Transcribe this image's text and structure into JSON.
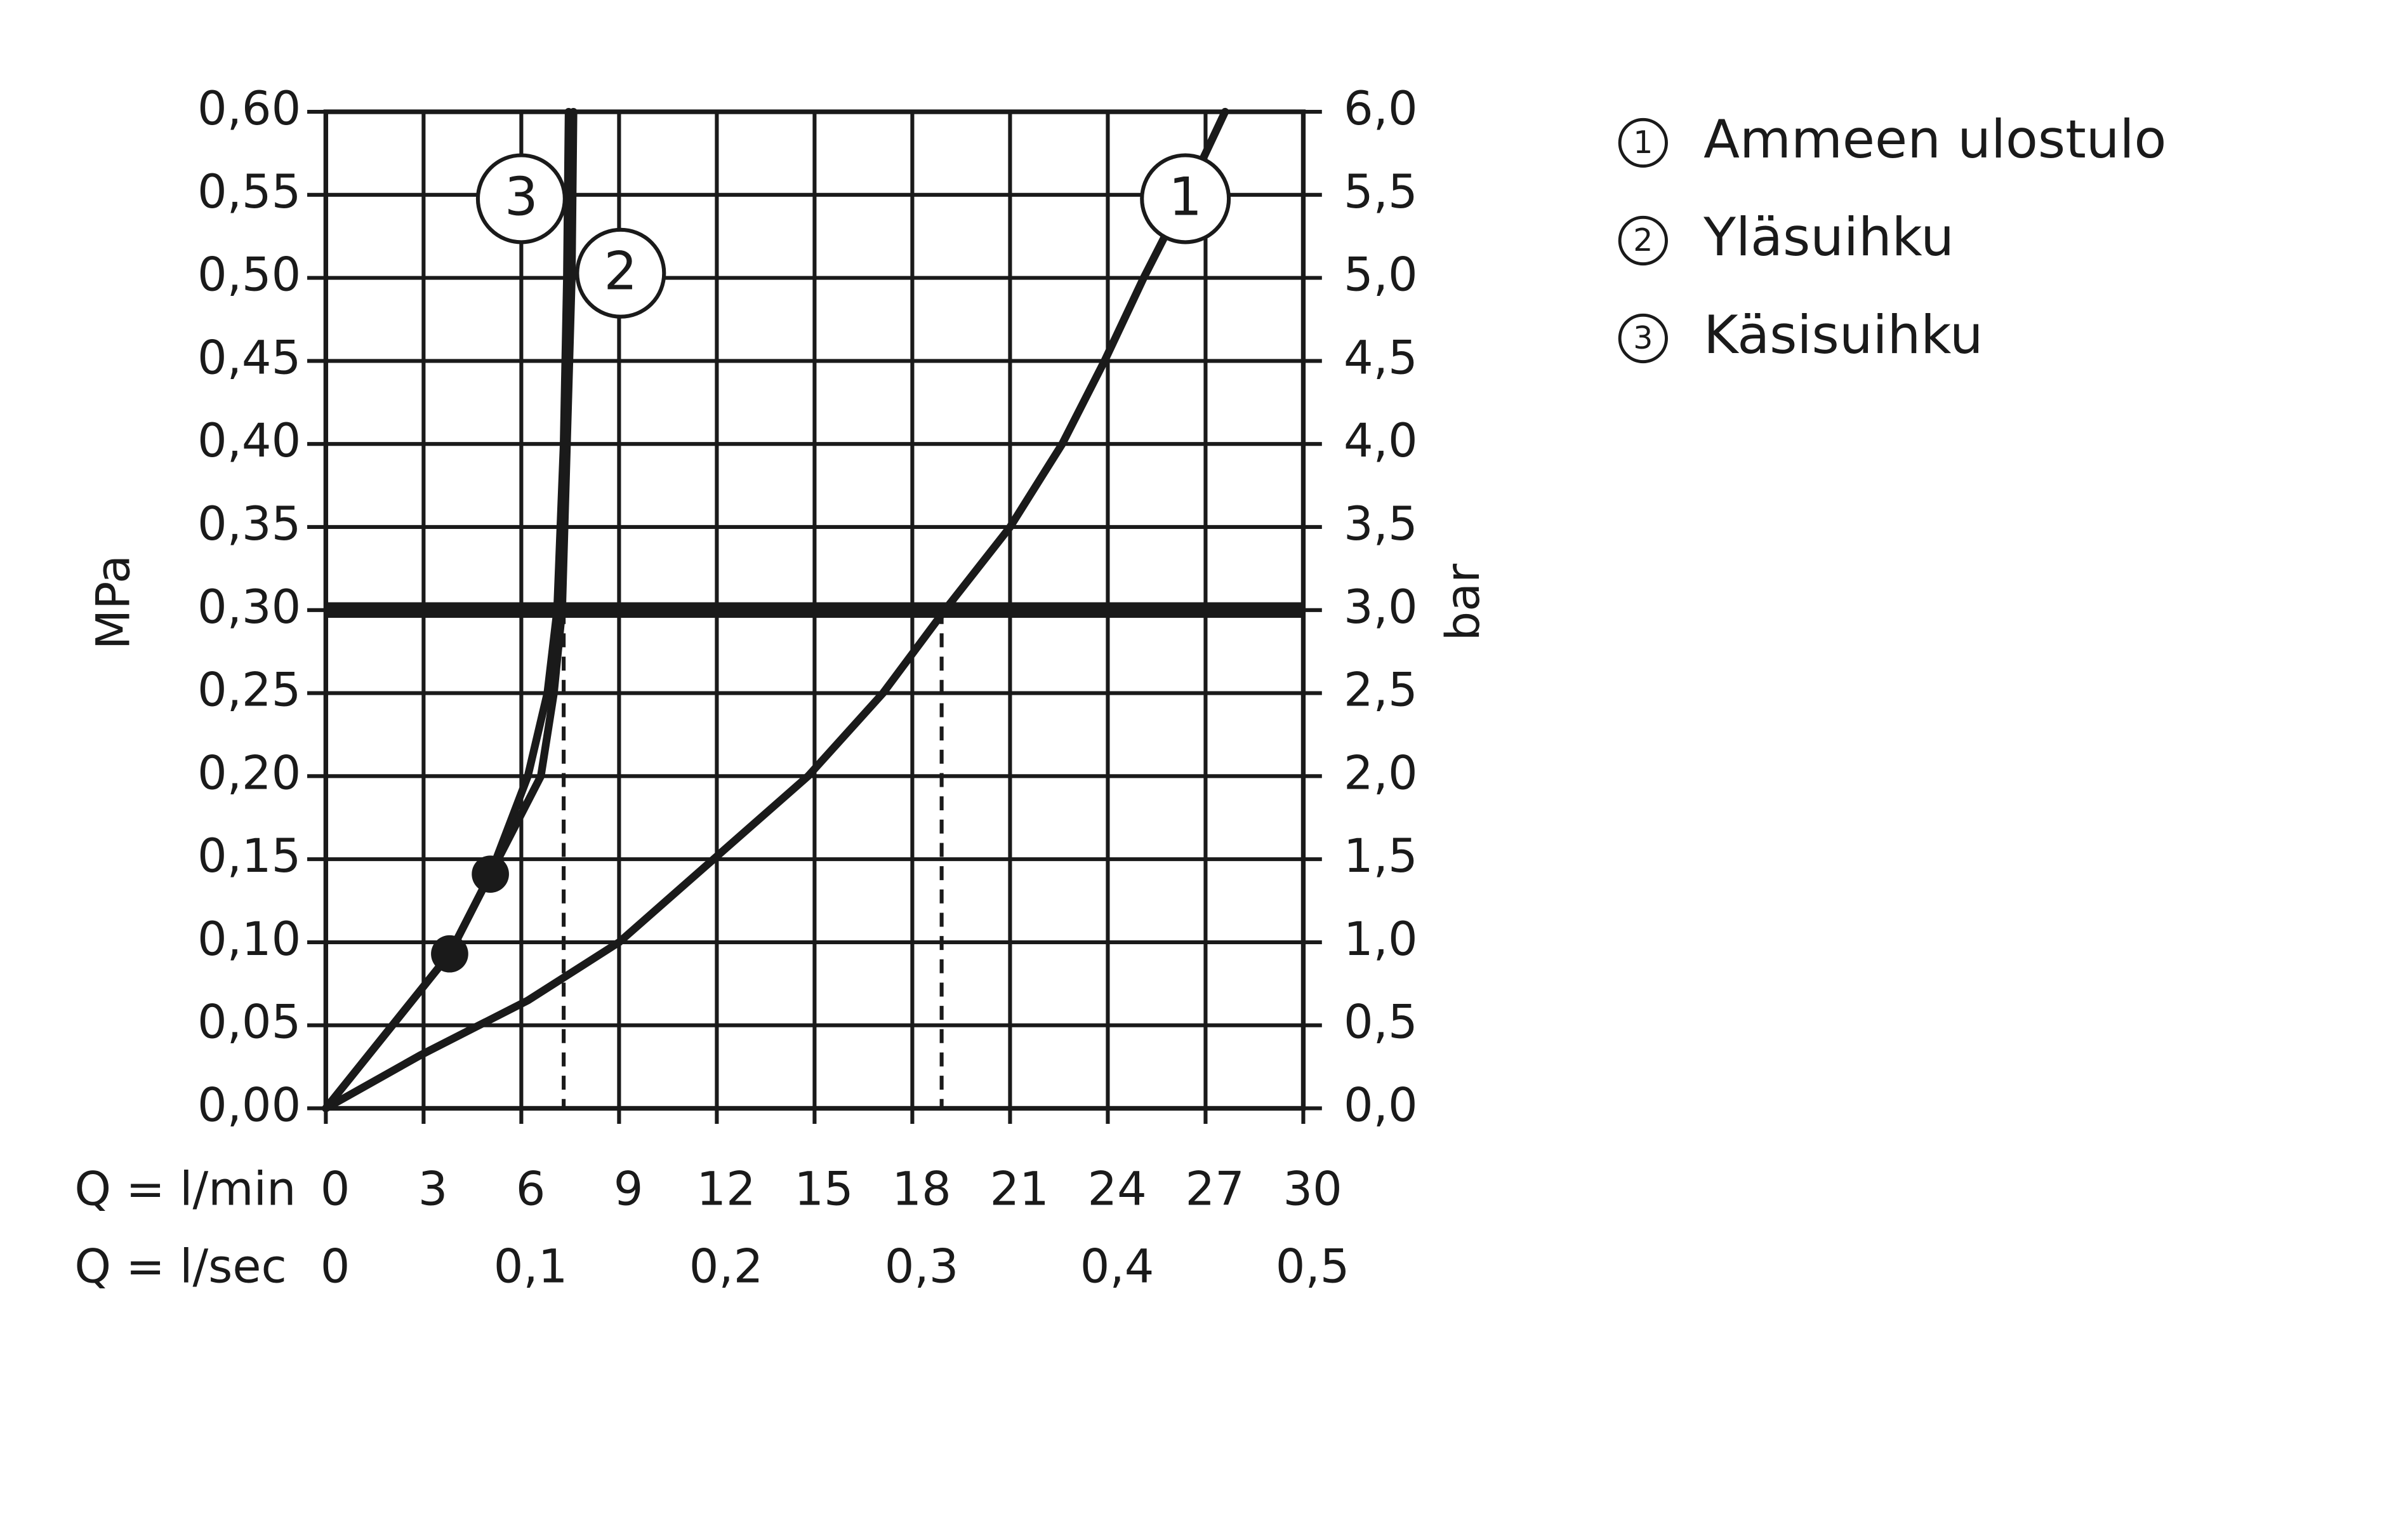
{
  "chart_data": {
    "type": "line",
    "x_label": "Q = l/min",
    "x2_label": "Q = l/sec",
    "y_label": "MPa",
    "y2_label": "bar",
    "xlim": [
      0,
      30
    ],
    "xticks": [
      0,
      3,
      6,
      9,
      12,
      15,
      18,
      21,
      24,
      27,
      30
    ],
    "x2lim": [
      0,
      0.5
    ],
    "x2ticks": [
      0,
      {
        "value": 0.1,
        "label": "0,1"
      },
      {
        "value": 0.2,
        "label": "0,2"
      },
      {
        "value": 0.3,
        "label": "0,3"
      },
      {
        "value": 0.4,
        "label": "0,4"
      },
      {
        "value": 0.5,
        "label": "0,5"
      }
    ],
    "ylim": [
      0,
      0.6
    ],
    "yticks": [
      {
        "value": 0,
        "label": "0,00"
      },
      {
        "value": 0.05,
        "label": "0,05"
      },
      {
        "value": 0.1,
        "label": "0,10"
      },
      {
        "value": 0.15,
        "label": "0,15"
      },
      {
        "value": 0.2,
        "label": "0,20"
      },
      {
        "value": 0.25,
        "label": "0,25"
      },
      {
        "value": 0.3,
        "label": "0,30"
      },
      {
        "value": 0.35,
        "label": "0,35"
      },
      {
        "value": 0.4,
        "label": "0,40"
      },
      {
        "value": 0.45,
        "label": "0,45"
      },
      {
        "value": 0.5,
        "label": "0,50"
      },
      {
        "value": 0.55,
        "label": "0,55"
      },
      {
        "value": 0.6,
        "label": "0,60"
      }
    ],
    "y2lim": [
      0,
      6
    ],
    "y2ticks": [
      {
        "value": 0,
        "label": "0,0"
      },
      {
        "value": 0.5,
        "label": "0,5"
      },
      {
        "value": 1,
        "label": "1,0"
      },
      {
        "value": 1.5,
        "label": "1,5"
      },
      {
        "value": 2,
        "label": "2,0"
      },
      {
        "value": 2.5,
        "label": "2,5"
      },
      {
        "value": 3,
        "label": "3,0"
      },
      {
        "value": 3.5,
        "label": "3,5"
      },
      {
        "value": 4,
        "label": "4,0"
      },
      {
        "value": 4.5,
        "label": "4,5"
      },
      {
        "value": 5,
        "label": "5,0"
      },
      {
        "value": 5.5,
        "label": "5,5"
      },
      {
        "value": 6,
        "label": "6,0"
      }
    ],
    "grid": true,
    "reference_line": 0.3,
    "drop_lines": [
      {
        "x": 7.3,
        "y": 0.3
      },
      {
        "x": 18.9,
        "y": 0.3
      }
    ],
    "points": [
      {
        "x": 3.8,
        "y": 0.093
      },
      {
        "x": 5.05,
        "y": 0.141
      }
    ],
    "series": [
      {
        "label": "1",
        "name": "Ammeen ulostulo",
        "color": "#1a1a1a",
        "x": [
          0,
          2.9,
          6.2,
          9.0,
          11.9,
          14.8,
          17.1,
          19.0,
          21.0,
          22.6,
          23.9,
          25.1,
          26.4,
          27.6
        ],
        "values": [
          0,
          0.032,
          0.065,
          0.1,
          0.15,
          0.2,
          0.25,
          0.3,
          0.35,
          0.4,
          0.45,
          0.5,
          0.55,
          0.6
        ]
      },
      {
        "label": "2",
        "name": "Yläsuihku",
        "color": "#1a1a1a",
        "x": [
          0,
          3.8,
          5.05,
          6.6,
          7.0,
          7.25,
          7.4,
          7.55,
          7.6
        ],
        "values": [
          0,
          0.093,
          0.141,
          0.2,
          0.25,
          0.3,
          0.4,
          0.5,
          0.6
        ]
      },
      {
        "label": "3",
        "name": "Käsisuihku",
        "color": "#1a1a1a",
        "x": [
          0,
          3.8,
          5.05,
          6.2,
          6.8,
          7.1,
          7.3,
          7.4,
          7.45
        ],
        "values": [
          0,
          0.093,
          0.141,
          0.2,
          0.25,
          0.3,
          0.4,
          0.5,
          0.6
        ]
      }
    ]
  }
}
